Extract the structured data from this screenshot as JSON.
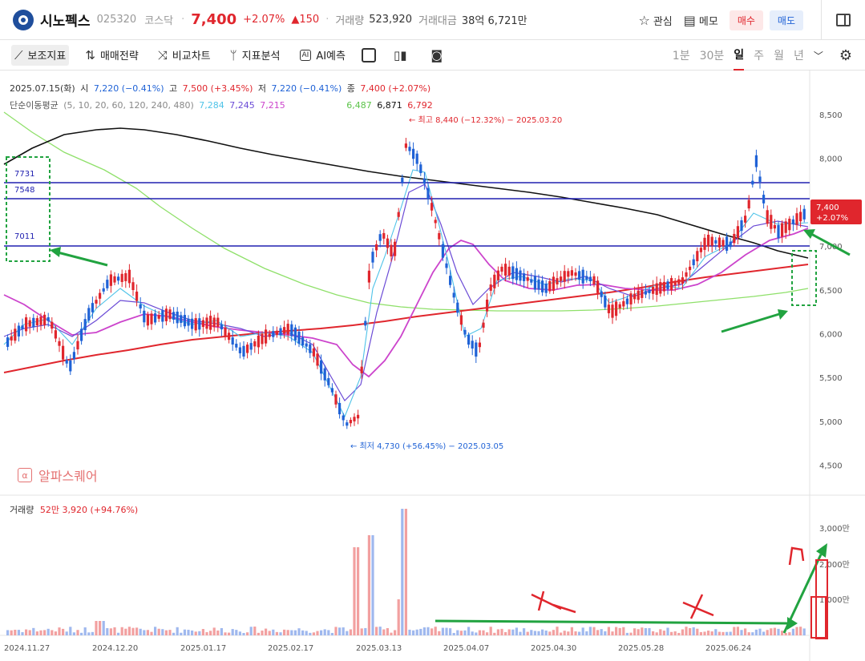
{
  "header": {
    "name": "시노펙스",
    "code": "025320",
    "market": "코스닥",
    "dot": "·",
    "price": "7,400",
    "change_pct": "+2.07%",
    "change_abs": "▲150",
    "volume_label": "거래량",
    "volume": "523,920",
    "amount_label": "거래대금",
    "amount": "38억 6,721만",
    "watch_label": "관심",
    "memo_label": "메모",
    "buy_label": "매수",
    "sell_label": "매도"
  },
  "toolbar": {
    "indicator_label": "보조지표",
    "strategy_label": "매매전략",
    "compare_label": "비교차트",
    "analysis_label": "지표분석",
    "ai_label": "AI예측",
    "periods": [
      "1분",
      "30분",
      "일",
      "주",
      "월",
      "년"
    ],
    "active_period": "일"
  },
  "info": {
    "date": "2025.07.15(화)",
    "open_label": "시",
    "open": "7,220 (−0.41%)",
    "high_label": "고",
    "high": "7,500 (+3.45%)",
    "low_label": "저",
    "low": "7,220 (−0.41%)",
    "close_label": "종",
    "close": "7,400 (+2.07%)",
    "ma_label": "단순이동평균",
    "ma_periods": "(5, 10, 20, 60, 120, 240, 480)",
    "ma_values": [
      "7,284",
      "7,245",
      "7,215",
      "6,487",
      "6,871",
      "6,792"
    ]
  },
  "brand_text": "알파스퀘어",
  "volume_info": {
    "label": "거래량",
    "value": "52만 3,920 (+94.76%)"
  },
  "price_tag": {
    "price": "7,400",
    "pct": "+2.07%"
  },
  "annotations": {
    "max_label": "← 최고 8,440 (−12.32%) − 2025.03.20",
    "min_label": "← 최저 4,730 (+56.45%) − 2025.03.05",
    "level_labels": [
      "7731",
      "7548",
      "7011"
    ]
  },
  "colors": {
    "up": "#e0262d",
    "down": "#1f62d6",
    "accent": "#e0262d"
  },
  "chart_data": {
    "type": "candlestick",
    "y_ticks": [
      "8,500",
      "8,000",
      "7,500",
      "7,000",
      "6,500",
      "6,000",
      "5,500",
      "5,000",
      "4,500"
    ],
    "ylim": [
      4400,
      8750
    ],
    "volume_ticks": [
      "3,000만",
      "2,000만",
      "1,000만"
    ],
    "x_ticks": [
      "2024.11.27",
      "2024.12.20",
      "2025.01.17",
      "2025.02.17",
      "2025.03.13",
      "2025.04.07",
      "2025.04.30",
      "2025.05.28",
      "2025.06.24"
    ],
    "horizontal_levels": [
      7731,
      7548,
      7011
    ],
    "last_close": 7400
  }
}
